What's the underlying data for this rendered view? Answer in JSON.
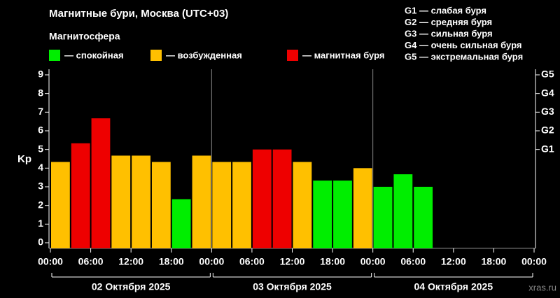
{
  "chart_data": {
    "type": "bar",
    "title": "Магнитные бури, Москва (UTC+03)",
    "legend_title": "Магнитосфера",
    "ylabel": "Kp",
    "storm_scale": [
      "G1 — слабая буря",
      "G2 — средняя буря",
      "G3 — сильная буря",
      "G4 — очень сильная буря",
      "G5 — экстремальная буря"
    ],
    "watermark": "xras.ru",
    "day_labels": [
      "02 Октября 2025",
      "03 Октября 2025",
      "04 Октября 2025"
    ],
    "x": [
      0,
      3,
      6,
      9,
      12,
      15,
      18,
      21,
      24,
      27,
      30,
      33,
      36,
      39,
      42,
      45,
      48,
      51,
      54
    ],
    "series": [
      {
        "name": "— спокойная",
        "color": "#00ee00",
        "values": [
          null,
          null,
          null,
          null,
          null,
          null,
          2.33,
          null,
          null,
          null,
          null,
          null,
          null,
          3.33,
          3.33,
          null,
          3,
          3.67,
          3
        ]
      },
      {
        "name": "— возбужденная",
        "color": "#ffc000",
        "values": [
          4.33,
          null,
          null,
          4.67,
          4.67,
          4.33,
          null,
          4.67,
          4.33,
          4.33,
          null,
          null,
          4.33,
          null,
          null,
          4,
          null,
          null,
          null
        ]
      },
      {
        "name": "— магнитная буря",
        "color": "#ee0000",
        "values": [
          null,
          5.33,
          6.67,
          null,
          null,
          null,
          null,
          null,
          null,
          null,
          5,
          5,
          null,
          null,
          null,
          null,
          null,
          null,
          null
        ]
      }
    ],
    "bar_width_hours": 3,
    "xlim": [
      0,
      72
    ],
    "xticks": [
      {
        "value": 0,
        "label": "00:00"
      },
      {
        "value": 6,
        "label": "06:00"
      },
      {
        "value": 12,
        "label": "12:00"
      },
      {
        "value": 18,
        "label": "18:00"
      },
      {
        "value": 24,
        "label": "00:00"
      },
      {
        "value": 30,
        "label": "06:00"
      },
      {
        "value": 36,
        "label": "12:00"
      },
      {
        "value": 42,
        "label": "18:00"
      },
      {
        "value": 48,
        "label": "00:00"
      },
      {
        "value": 54,
        "label": "06:00"
      },
      {
        "value": 60,
        "label": "12:00"
      },
      {
        "value": 66,
        "label": "18:00"
      },
      {
        "value": 72,
        "label": "00:00"
      }
    ],
    "ylim": [
      -0.3,
      9.3
    ],
    "yticks": [
      0,
      1,
      2,
      3,
      4,
      5,
      6,
      7,
      8,
      9
    ],
    "y2lim": [
      -0.3,
      9.3
    ],
    "y2ticks": [
      {
        "value": 5,
        "label": "G1"
      },
      {
        "value": 6,
        "label": "G2"
      },
      {
        "value": 7,
        "label": "G3"
      },
      {
        "value": 8,
        "label": "G4"
      },
      {
        "value": 9,
        "label": "G5"
      }
    ],
    "day_separators": [
      24,
      48
    ]
  }
}
